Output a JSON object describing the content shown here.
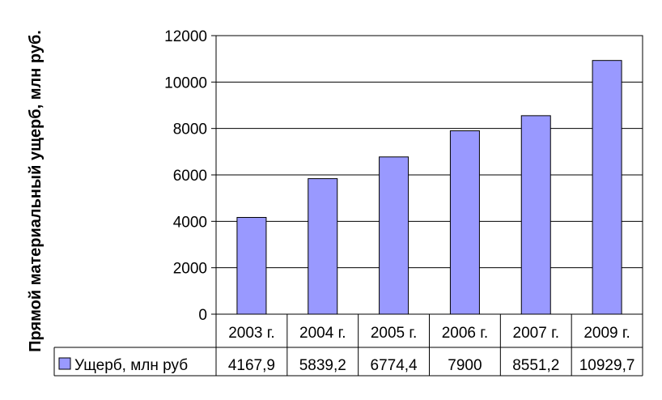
{
  "chart_data": {
    "type": "bar",
    "ylabel": "Прямой материальный ущерб, млн руб.",
    "categories": [
      "2003 г.",
      "2004 г.",
      "2005 г.",
      "2006 г.",
      "2007 г.",
      "2009 г."
    ],
    "series": [
      {
        "name": "Ущерб, млн руб",
        "values": [
          4167.9,
          5839.2,
          6774.4,
          7900,
          8551.2,
          10929.7
        ],
        "labels": [
          "4167,9",
          "5839,2",
          "6774,4",
          "7900",
          "8551,2",
          "10929,7"
        ],
        "color": "#9999ff"
      }
    ],
    "ylim": [
      0,
      12000
    ],
    "yticks": [
      0,
      2000,
      4000,
      6000,
      8000,
      10000,
      12000
    ],
    "grid": true,
    "legend": "data table"
  }
}
